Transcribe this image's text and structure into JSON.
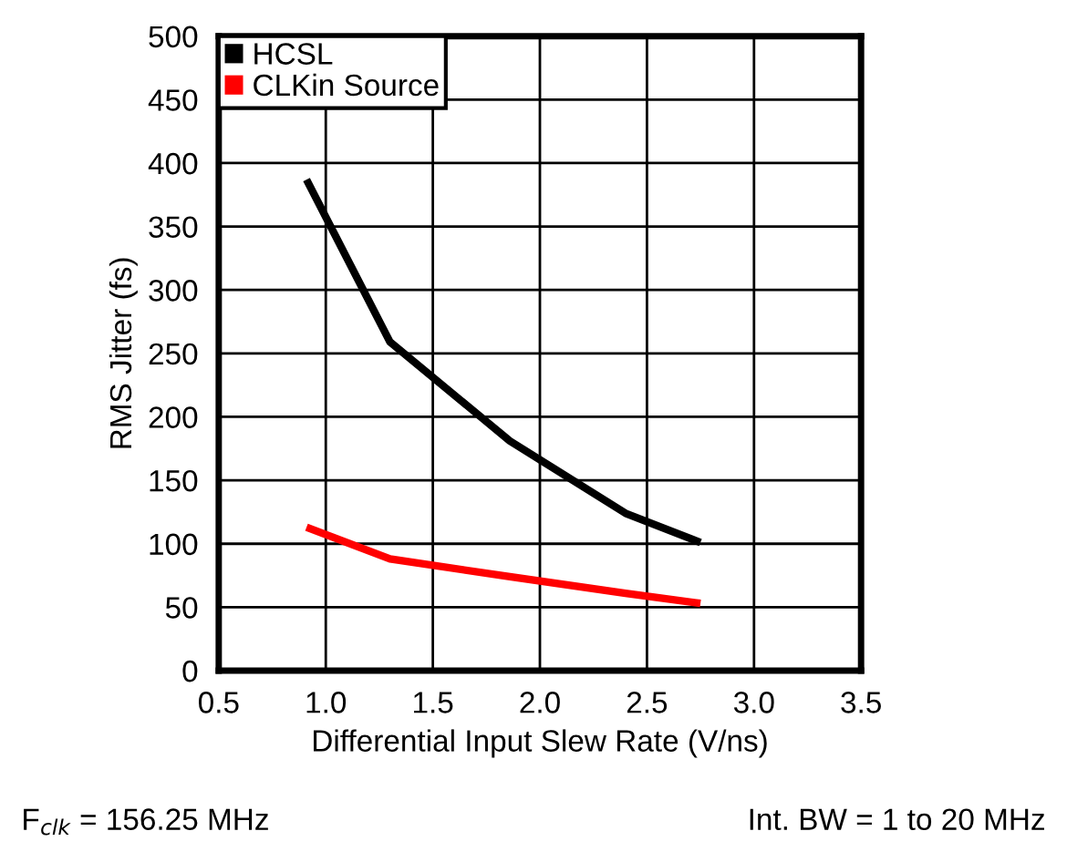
{
  "chart_data": {
    "type": "line",
    "xlabel": "Differential Input Slew Rate (V/ns)",
    "ylabel": "RMS Jitter (fs)",
    "x": [
      0.91,
      1.3,
      1.86,
      2.4,
      2.75
    ],
    "series": [
      {
        "name": "HCSL",
        "color": "#000000",
        "values": [
          387,
          259,
          181,
          124,
          101
        ]
      },
      {
        "name": "CLKin Source",
        "color": "#ff0000",
        "values": [
          113,
          88,
          74,
          61,
          53
        ]
      }
    ],
    "xlim": [
      0.5,
      3.5
    ],
    "xticks": [
      {
        "value": 0.5,
        "label": "0.5"
      },
      {
        "value": 1.0,
        "label": "1.0"
      },
      {
        "value": 1.5,
        "label": "1.5"
      },
      {
        "value": 2.0,
        "label": "2.0"
      },
      {
        "value": 2.5,
        "label": "2.5"
      },
      {
        "value": 3.0,
        "label": "3.0"
      },
      {
        "value": 3.5,
        "label": "3.5"
      }
    ],
    "ylim": [
      0,
      500
    ],
    "yticks": [
      0,
      50,
      100,
      150,
      200,
      250,
      300,
      350,
      400,
      450,
      500
    ],
    "grid": true,
    "legend": "top left",
    "marker": "none",
    "line_style": "solid",
    "annotations": [
      "F$_{clk}$ = 156.25 MHz",
      "Int. BW = 1 to 20 MHz"
    ]
  }
}
